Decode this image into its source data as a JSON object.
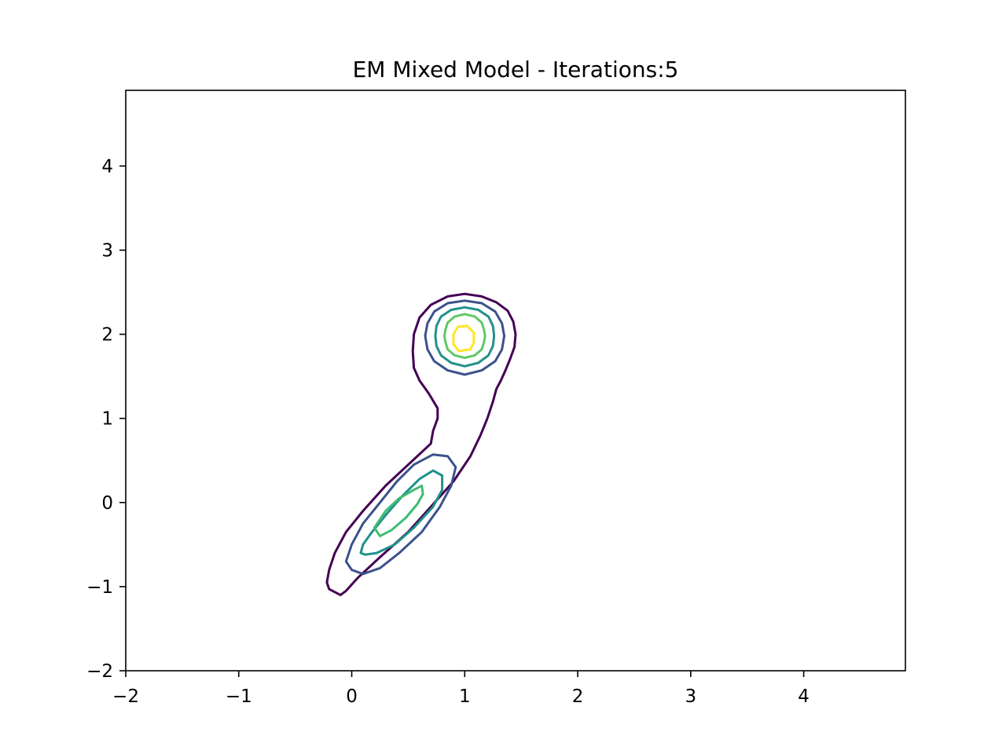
{
  "chart_data": {
    "type": "contour",
    "title": "EM Mixed Model - Iterations:5",
    "xlabel": "",
    "ylabel": "",
    "xlim": [
      -2,
      4.9
    ],
    "ylim": [
      -2,
      4.9
    ],
    "xticks": [
      -2,
      -1,
      0,
      1,
      2,
      3,
      4
    ],
    "yticks": [
      -2,
      -1,
      0,
      1,
      2,
      3,
      4
    ],
    "xtick_labels": [
      "−2",
      "−1",
      "0",
      "1",
      "2",
      "3",
      "4"
    ],
    "ytick_labels": [
      "−2",
      "−1",
      "0",
      "1",
      "2",
      "3",
      "4"
    ],
    "grid": false,
    "legend": false,
    "components": [
      {
        "mean": [
          1.0,
          1.98
        ],
        "shape": "circular"
      },
      {
        "mean": [
          0.4,
          -0.15
        ],
        "shape": "elongated, tilted along y = x"
      }
    ],
    "contours": [
      {
        "level": 1,
        "color": "#440154",
        "paths": [
          [
            [
              -0.1,
              -1.1
            ],
            [
              -0.2,
              -1.03
            ],
            [
              -0.22,
              -0.95
            ],
            [
              -0.2,
              -0.8
            ],
            [
              -0.15,
              -0.6
            ],
            [
              -0.05,
              -0.35
            ],
            [
              0.1,
              -0.1
            ],
            [
              0.3,
              0.2
            ],
            [
              0.5,
              0.45
            ],
            [
              0.7,
              0.7
            ],
            [
              0.72,
              0.85
            ],
            [
              0.76,
              1.0
            ],
            [
              0.76,
              1.12
            ],
            [
              0.68,
              1.3
            ],
            [
              0.6,
              1.45
            ],
            [
              0.55,
              1.6
            ],
            [
              0.54,
              1.8
            ],
            [
              0.55,
              2.0
            ],
            [
              0.6,
              2.2
            ],
            [
              0.7,
              2.35
            ],
            [
              0.85,
              2.45
            ],
            [
              1.0,
              2.48
            ],
            [
              1.15,
              2.45
            ],
            [
              1.28,
              2.38
            ],
            [
              1.38,
              2.28
            ],
            [
              1.43,
              2.15
            ],
            [
              1.45,
              2.0
            ],
            [
              1.44,
              1.85
            ],
            [
              1.4,
              1.7
            ],
            [
              1.36,
              1.57
            ],
            [
              1.32,
              1.45
            ],
            [
              1.28,
              1.35
            ],
            [
              1.25,
              1.2
            ],
            [
              1.2,
              1.0
            ],
            [
              1.14,
              0.8
            ],
            [
              1.05,
              0.55
            ],
            [
              0.9,
              0.25
            ],
            [
              0.7,
              -0.05
            ],
            [
              0.5,
              -0.35
            ],
            [
              0.25,
              -0.65
            ],
            [
              0.05,
              -0.9
            ],
            [
              -0.05,
              -1.05
            ],
            [
              -0.1,
              -1.1
            ]
          ]
        ]
      },
      {
        "level": 2,
        "color": "#3b528b",
        "paths": [
          [
            [
              1.0,
              1.52
            ],
            [
              1.15,
              1.57
            ],
            [
              1.27,
              1.68
            ],
            [
              1.33,
              1.82
            ],
            [
              1.35,
              1.98
            ],
            [
              1.33,
              2.13
            ],
            [
              1.27,
              2.27
            ],
            [
              1.15,
              2.37
            ],
            [
              1.0,
              2.4
            ],
            [
              0.85,
              2.37
            ],
            [
              0.73,
              2.27
            ],
            [
              0.67,
              2.13
            ],
            [
              0.65,
              1.98
            ],
            [
              0.67,
              1.82
            ],
            [
              0.73,
              1.68
            ],
            [
              0.85,
              1.57
            ],
            [
              1.0,
              1.52
            ]
          ],
          [
            [
              0.1,
              -0.85
            ],
            [
              0.0,
              -0.8
            ],
            [
              -0.05,
              -0.7
            ],
            [
              0.0,
              -0.5
            ],
            [
              0.1,
              -0.25
            ],
            [
              0.25,
              0.0
            ],
            [
              0.4,
              0.25
            ],
            [
              0.55,
              0.45
            ],
            [
              0.72,
              0.57
            ],
            [
              0.85,
              0.55
            ],
            [
              0.92,
              0.42
            ],
            [
              0.88,
              0.2
            ],
            [
              0.78,
              -0.05
            ],
            [
              0.62,
              -0.35
            ],
            [
              0.42,
              -0.6
            ],
            [
              0.25,
              -0.78
            ],
            [
              0.1,
              -0.85
            ]
          ]
        ]
      },
      {
        "level": 3,
        "color": "#21918c",
        "paths": [
          [
            [
              1.0,
              1.62
            ],
            [
              1.12,
              1.66
            ],
            [
              1.21,
              1.75
            ],
            [
              1.25,
              1.86
            ],
            [
              1.26,
              1.98
            ],
            [
              1.25,
              2.1
            ],
            [
              1.21,
              2.21
            ],
            [
              1.12,
              2.29
            ],
            [
              1.0,
              2.32
            ],
            [
              0.88,
              2.29
            ],
            [
              0.79,
              2.21
            ],
            [
              0.75,
              2.1
            ],
            [
              0.74,
              1.98
            ],
            [
              0.75,
              1.86
            ],
            [
              0.79,
              1.75
            ],
            [
              0.88,
              1.66
            ],
            [
              1.0,
              1.62
            ]
          ],
          [
            [
              0.08,
              -0.6
            ],
            [
              0.1,
              -0.5
            ],
            [
              0.18,
              -0.35
            ],
            [
              0.3,
              -0.15
            ],
            [
              0.45,
              0.08
            ],
            [
              0.6,
              0.28
            ],
            [
              0.72,
              0.38
            ],
            [
              0.8,
              0.32
            ],
            [
              0.8,
              0.15
            ],
            [
              0.72,
              -0.05
            ],
            [
              0.55,
              -0.3
            ],
            [
              0.38,
              -0.5
            ],
            [
              0.22,
              -0.6
            ],
            [
              0.12,
              -0.62
            ],
            [
              0.08,
              -0.6
            ]
          ]
        ]
      },
      {
        "level": 4,
        "color": "#5ec962",
        "paths": [
          [
            [
              1.0,
              1.72
            ],
            [
              1.09,
              1.75
            ],
            [
              1.15,
              1.82
            ],
            [
              1.17,
              1.9
            ],
            [
              1.18,
              1.98
            ],
            [
              1.17,
              2.06
            ],
            [
              1.15,
              2.14
            ],
            [
              1.09,
              2.21
            ],
            [
              1.0,
              2.24
            ],
            [
              0.91,
              2.21
            ],
            [
              0.85,
              2.14
            ],
            [
              0.83,
              2.06
            ],
            [
              0.82,
              1.98
            ],
            [
              0.83,
              1.9
            ],
            [
              0.85,
              1.82
            ],
            [
              0.91,
              1.75
            ],
            [
              1.0,
              1.72
            ]
          ]
        ]
      },
      {
        "level": 4.5,
        "color": "#3fbc73",
        "paths": [
          [
            [
              0.25,
              -0.4
            ],
            [
              0.2,
              -0.3
            ],
            [
              0.3,
              -0.1
            ],
            [
              0.42,
              0.05
            ],
            [
              0.55,
              0.15
            ],
            [
              0.62,
              0.2
            ],
            [
              0.63,
              0.1
            ],
            [
              0.58,
              -0.02
            ],
            [
              0.48,
              -0.18
            ],
            [
              0.35,
              -0.33
            ],
            [
              0.25,
              -0.4
            ]
          ]
        ]
      },
      {
        "level": 5,
        "color": "#fde725",
        "paths": [
          [
            [
              0.95,
              1.8
            ],
            [
              1.05,
              1.82
            ],
            [
              1.08,
              1.9
            ],
            [
              1.08,
              2.02
            ],
            [
              1.02,
              2.1
            ],
            [
              0.94,
              2.09
            ],
            [
              0.9,
              2.0
            ],
            [
              0.9,
              1.88
            ],
            [
              0.95,
              1.8
            ]
          ]
        ]
      }
    ]
  }
}
